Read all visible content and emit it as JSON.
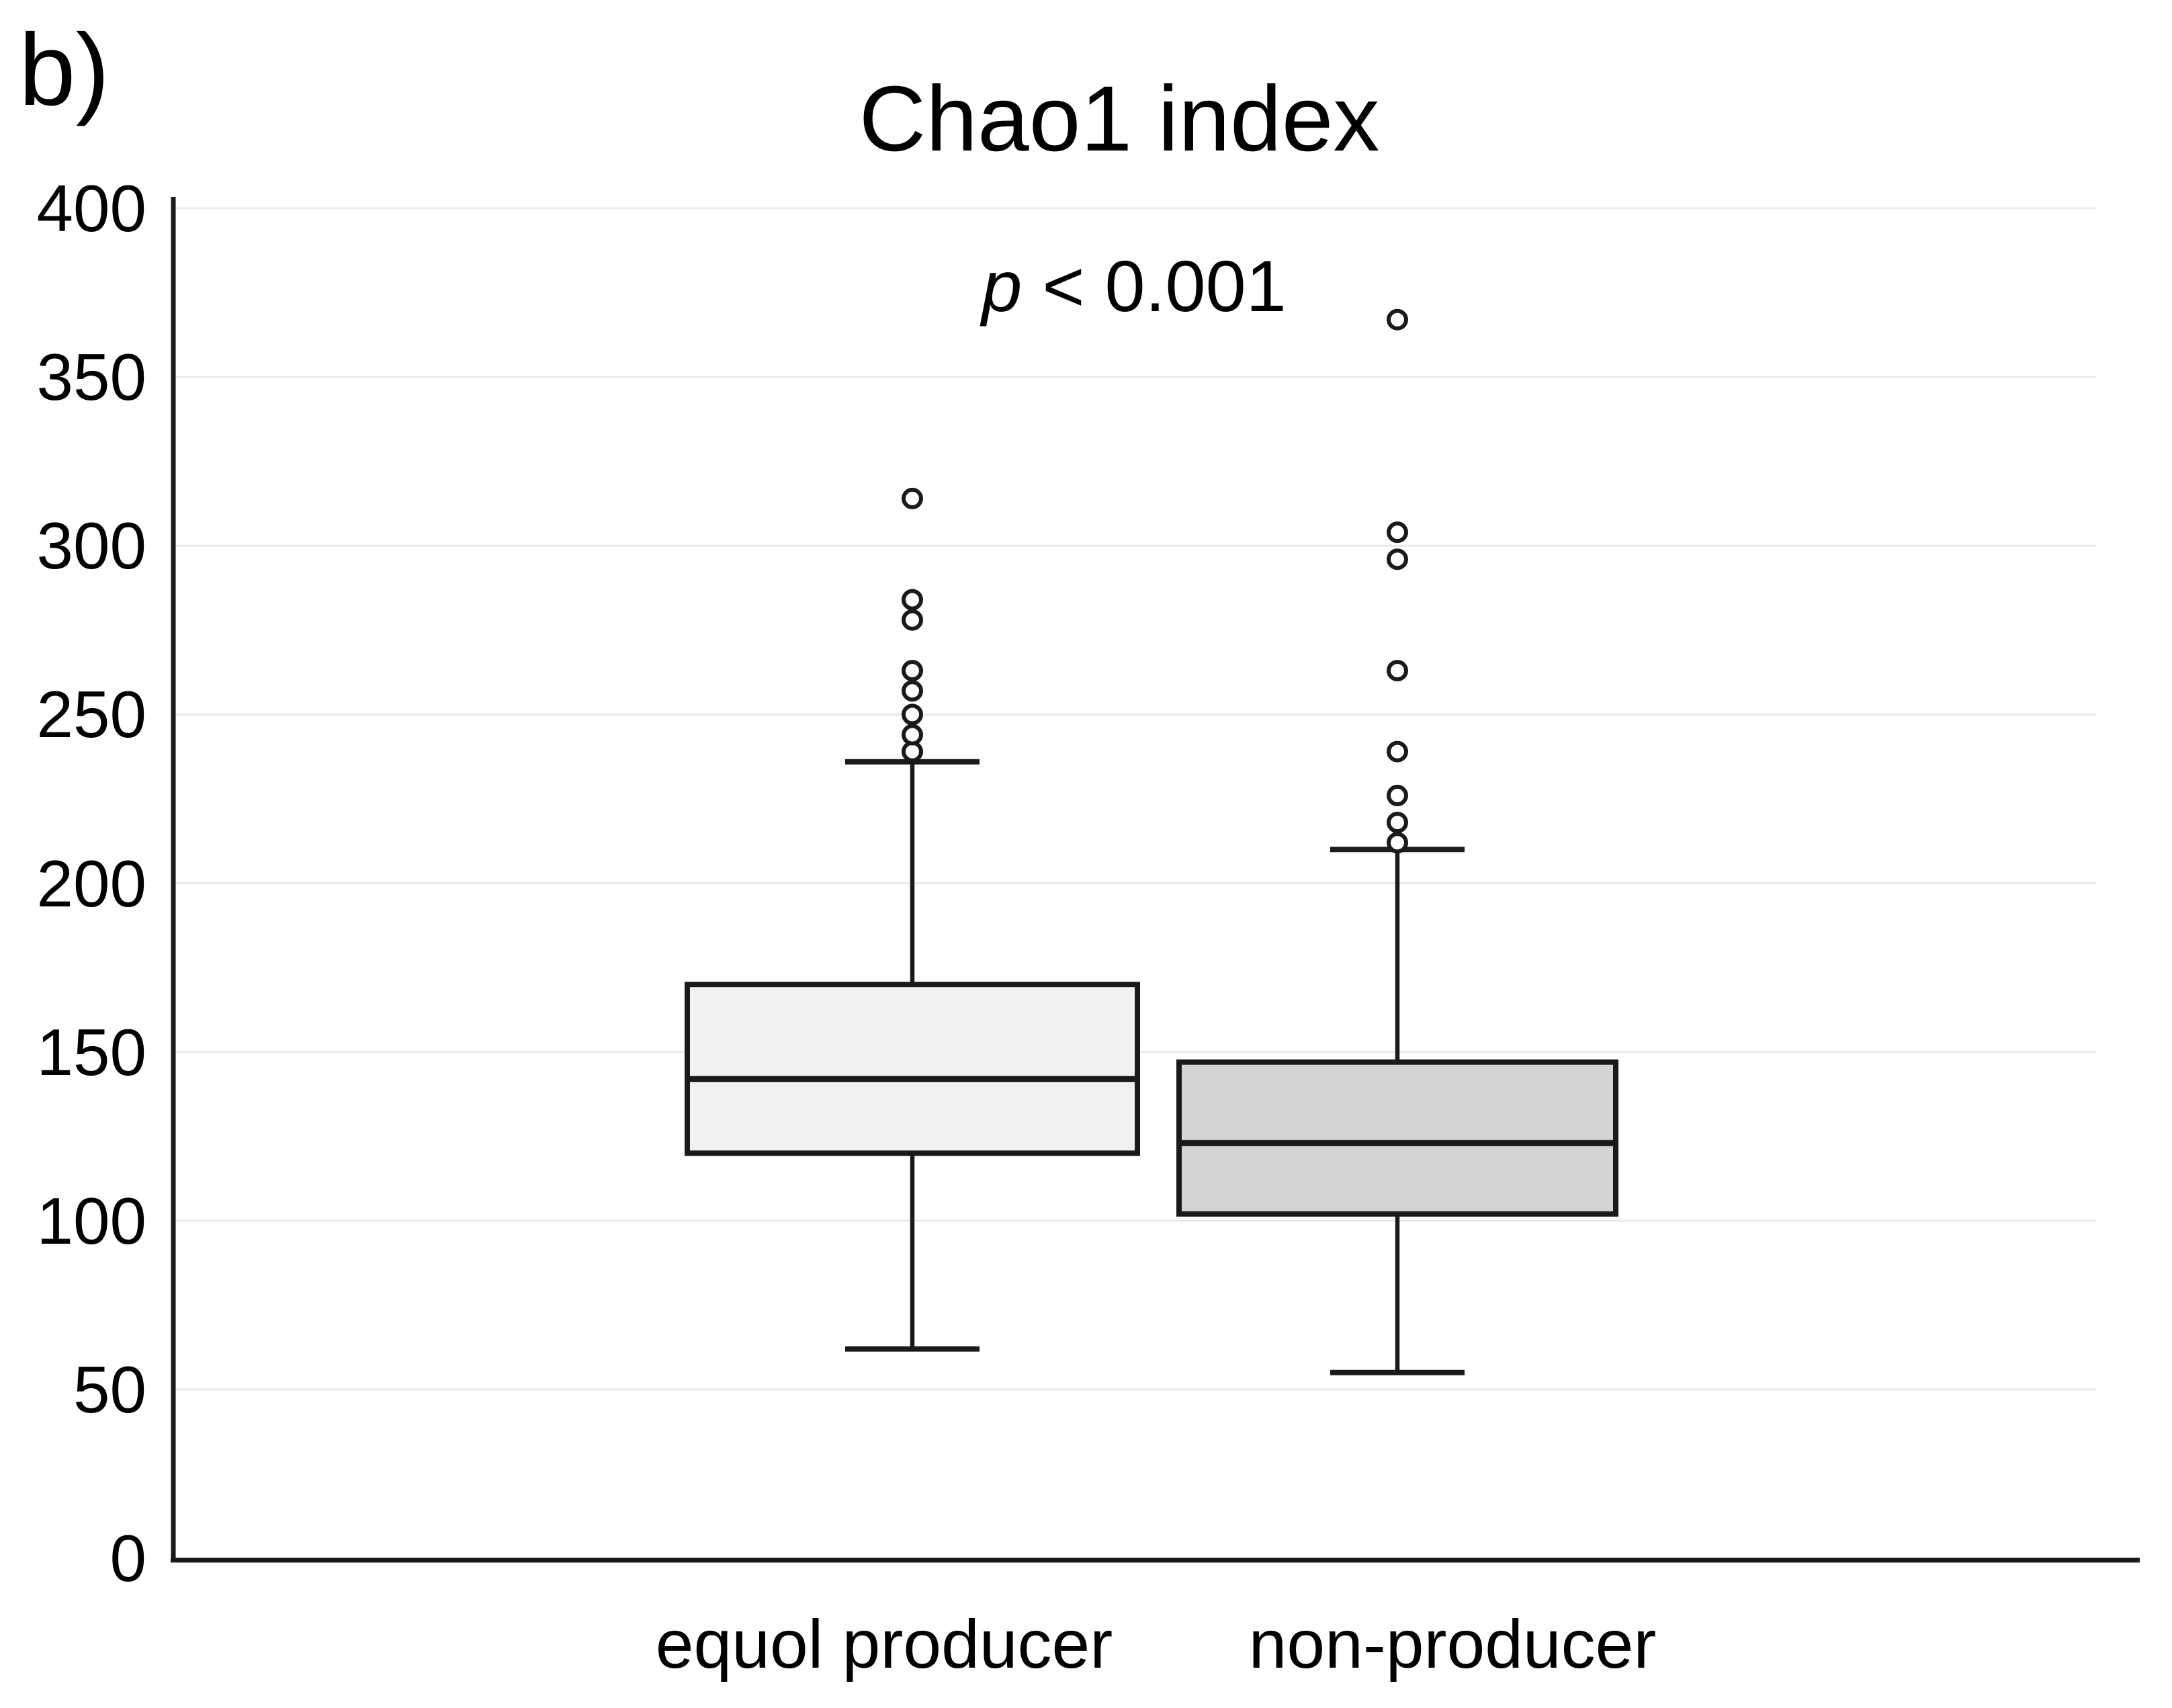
{
  "chart_data": {
    "type": "boxplot",
    "panel_label": "b)",
    "title": "Chao1 index",
    "annotation": {
      "variable": "p",
      "comparison": " < 0.001"
    },
    "ylabel": "",
    "xlabel": "",
    "ylim": [
      0,
      400
    ],
    "yticks": [
      0,
      50,
      100,
      150,
      200,
      250,
      300,
      350,
      400
    ],
    "grid": true,
    "legend": "none",
    "categories": [
      "equol producer",
      "non-producer"
    ],
    "series": [
      {
        "name": "equol producer",
        "whisker_low": 62,
        "q1": 120,
        "median": 142,
        "q3": 170,
        "whisker_high": 236,
        "outliers": [
          239,
          244,
          250,
          257,
          263,
          278,
          284,
          314
        ],
        "fill": "#f2f1f1"
      },
      {
        "name": "non-producer",
        "whisker_low": 55,
        "q1": 102,
        "median": 123,
        "q3": 147,
        "whisker_high": 210,
        "outliers": [
          212,
          218,
          226,
          239,
          263,
          296,
          304,
          367
        ],
        "fill": "#d5d3d3"
      }
    ],
    "colors": {
      "line": "#1a1a1a",
      "gridline": "#eaeaea",
      "background": "#ffffff",
      "outlier_fill": "#ffffff"
    }
  }
}
